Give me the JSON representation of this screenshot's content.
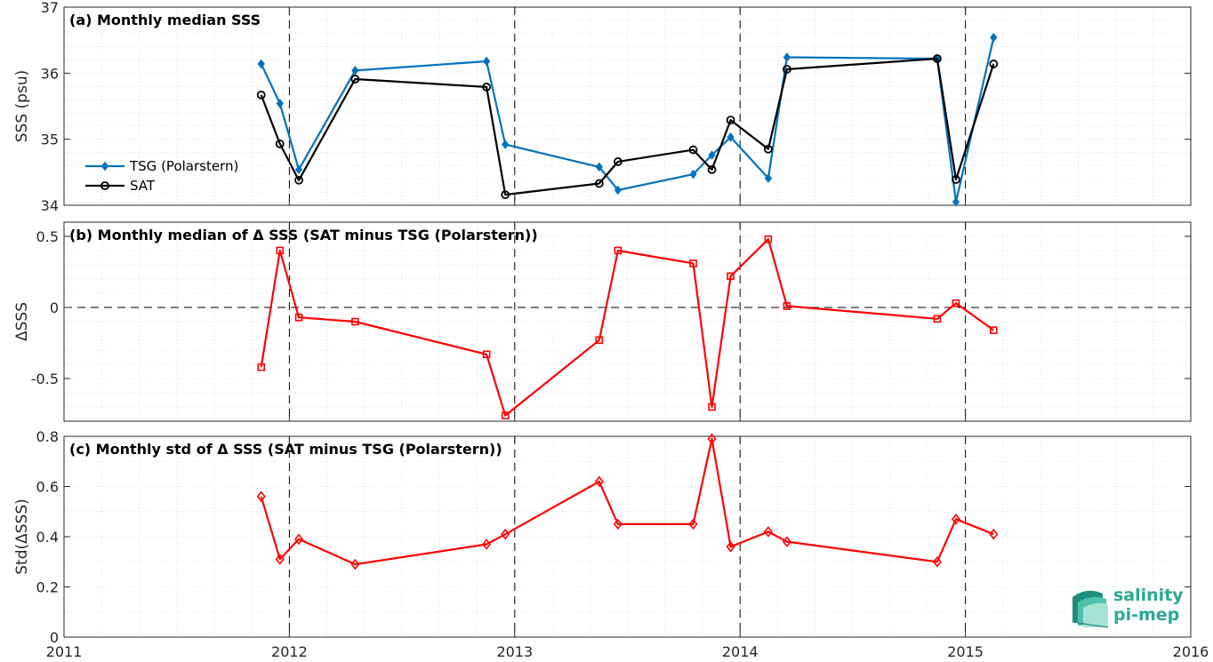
{
  "colors": {
    "tsg": "#0072bd",
    "sat": "#000000",
    "delta": "#ff0000"
  },
  "logo": {
    "line1": "salinity",
    "line2": "pi-mep"
  },
  "chart_data": [
    {
      "type": "line",
      "title": "(a) Monthly median SSS",
      "ylabel": "SSS (psu)",
      "xlim": [
        2011,
        2016
      ],
      "ylim": [
        34,
        37
      ],
      "xticks": [
        2011,
        2012,
        2013,
        2014,
        2015,
        2016
      ],
      "xtick_labels": [
        "2011",
        "2012",
        "2013",
        "2014",
        "2015",
        "2016"
      ],
      "yticks": [
        34,
        35,
        36,
        37
      ],
      "ytick_labels": [
        "34",
        "35",
        "36",
        "37"
      ],
      "legend_position": "lower-left",
      "grid": true,
      "series": [
        {
          "name": "TSG (Polarstern)",
          "marker": "diamond-filled",
          "x": [
            2011.875,
            2011.958,
            2012.042,
            2012.292,
            2012.875,
            2012.958,
            2013.375,
            2013.458,
            2013.792,
            2013.875,
            2013.958,
            2014.125,
            2014.208,
            2014.875,
            2014.958,
            2015.125
          ],
          "y": [
            36.14,
            35.54,
            34.54,
            36.04,
            36.18,
            34.92,
            34.58,
            34.23,
            34.47,
            34.76,
            35.03,
            34.41,
            36.24,
            36.22,
            34.05,
            36.54
          ]
        },
        {
          "name": "SAT",
          "marker": "circle-open",
          "x": [
            2011.875,
            2011.958,
            2012.042,
            2012.292,
            2012.875,
            2012.958,
            2013.375,
            2013.458,
            2013.792,
            2013.875,
            2013.958,
            2014.125,
            2014.208,
            2014.875,
            2014.958,
            2015.125
          ],
          "y": [
            35.67,
            34.93,
            34.38,
            35.91,
            35.79,
            34.16,
            34.33,
            34.66,
            34.84,
            34.54,
            35.29,
            34.85,
            36.06,
            36.22,
            34.39,
            36.14
          ]
        }
      ]
    },
    {
      "type": "line",
      "title": "(b) Monthly median of Δ SSS (SAT minus TSG (Polarstern))",
      "ylabel": "ΔSSS",
      "xlim": [
        2011,
        2016
      ],
      "ylim": [
        -0.8,
        0.6
      ],
      "yticks": [
        -0.5,
        0,
        0.5
      ],
      "ytick_labels": [
        "-0.5",
        "0",
        "0.5"
      ],
      "zero_line": true,
      "grid": true,
      "series": [
        {
          "marker": "square-open",
          "x": [
            2011.875,
            2011.958,
            2012.042,
            2012.292,
            2012.875,
            2012.958,
            2013.375,
            2013.458,
            2013.792,
            2013.875,
            2013.958,
            2014.125,
            2014.208,
            2014.875,
            2014.958,
            2015.125
          ],
          "y": [
            -0.42,
            0.4,
            -0.07,
            -0.1,
            -0.33,
            -0.76,
            -0.23,
            0.4,
            0.31,
            -0.7,
            0.22,
            0.48,
            0.01,
            -0.08,
            0.03,
            -0.16
          ]
        }
      ]
    },
    {
      "type": "line",
      "title": "(c) Monthly std of Δ SSS (SAT minus TSG (Polarstern))",
      "ylabel": "Std(ΔSSS)",
      "xlim": [
        2011,
        2016
      ],
      "ylim": [
        0,
        0.8
      ],
      "yticks": [
        0,
        0.2,
        0.4,
        0.6,
        0.8
      ],
      "ytick_labels": [
        "0",
        "0.2",
        "0.4",
        "0.6",
        "0.8"
      ],
      "grid": true,
      "series": [
        {
          "marker": "diamond-open",
          "x": [
            2011.875,
            2011.958,
            2012.042,
            2012.292,
            2012.875,
            2012.958,
            2013.375,
            2013.458,
            2013.792,
            2013.875,
            2013.958,
            2014.125,
            2014.208,
            2014.875,
            2014.958,
            2015.125
          ],
          "y": [
            0.56,
            0.31,
            0.39,
            0.29,
            0.37,
            0.41,
            0.62,
            0.45,
            0.45,
            0.79,
            0.36,
            0.42,
            0.38,
            0.3,
            0.47,
            0.41
          ]
        }
      ]
    }
  ]
}
